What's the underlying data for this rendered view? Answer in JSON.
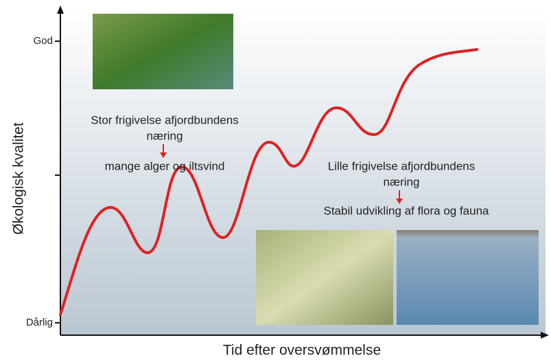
{
  "axes": {
    "y_label": "Økologisk kvalitet",
    "x_label": "Tid efter oversvømmelse",
    "y_ticks": [
      "God",
      "Dårlig"
    ]
  },
  "annotations": [
    {
      "cause": [
        "Stor frigivelse afjordbundens",
        "næring"
      ],
      "effect": "mange alger og iltsvind"
    },
    {
      "cause": [
        "Lille frigivelse afjordbundens",
        "næring"
      ],
      "effect": "Stabil udvikling af flora og fauna"
    }
  ]
}
